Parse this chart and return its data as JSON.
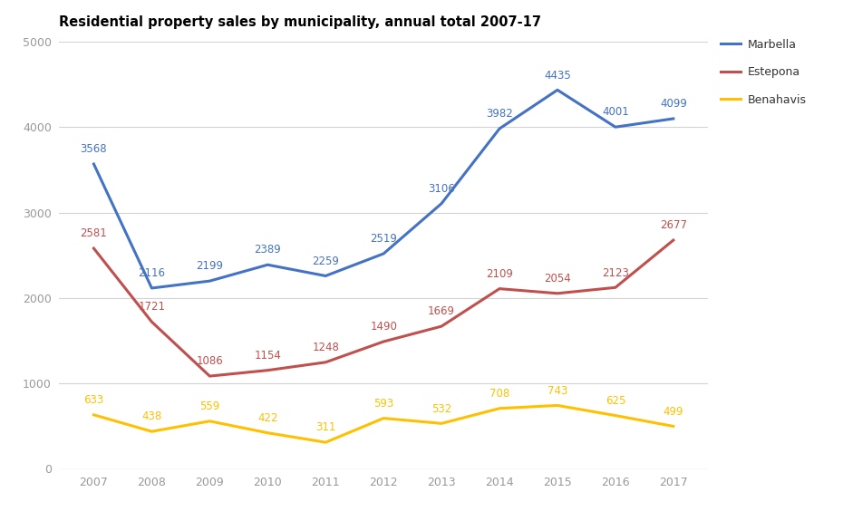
{
  "title": "Residential property sales by municipality, annual total 2007-17",
  "years": [
    2007,
    2008,
    2009,
    2010,
    2011,
    2012,
    2013,
    2014,
    2015,
    2016,
    2017
  ],
  "marbella": [
    3568,
    2116,
    2199,
    2389,
    2259,
    2519,
    3106,
    3982,
    4435,
    4001,
    4099
  ],
  "estepona": [
    2581,
    1721,
    1086,
    1154,
    1248,
    1490,
    1669,
    2109,
    2054,
    2123,
    2677
  ],
  "benahavis": [
    633,
    438,
    559,
    422,
    311,
    593,
    532,
    708,
    743,
    625,
    499
  ],
  "marbella_color": "#4472C4",
  "estepona_color": "#C0504D",
  "benahavis_color": "#FFC000",
  "ylim": [
    0,
    5000
  ],
  "yticks": [
    0,
    1000,
    2000,
    3000,
    4000,
    5000
  ],
  "background_color": "#FFFFFF",
  "grid_color": "#D3D3D3",
  "title_fontsize": 10.5,
  "label_fontsize": 8.5,
  "tick_color": "#999999",
  "legend_labels": [
    "Marbella",
    "Estepona",
    "Benahavis"
  ]
}
